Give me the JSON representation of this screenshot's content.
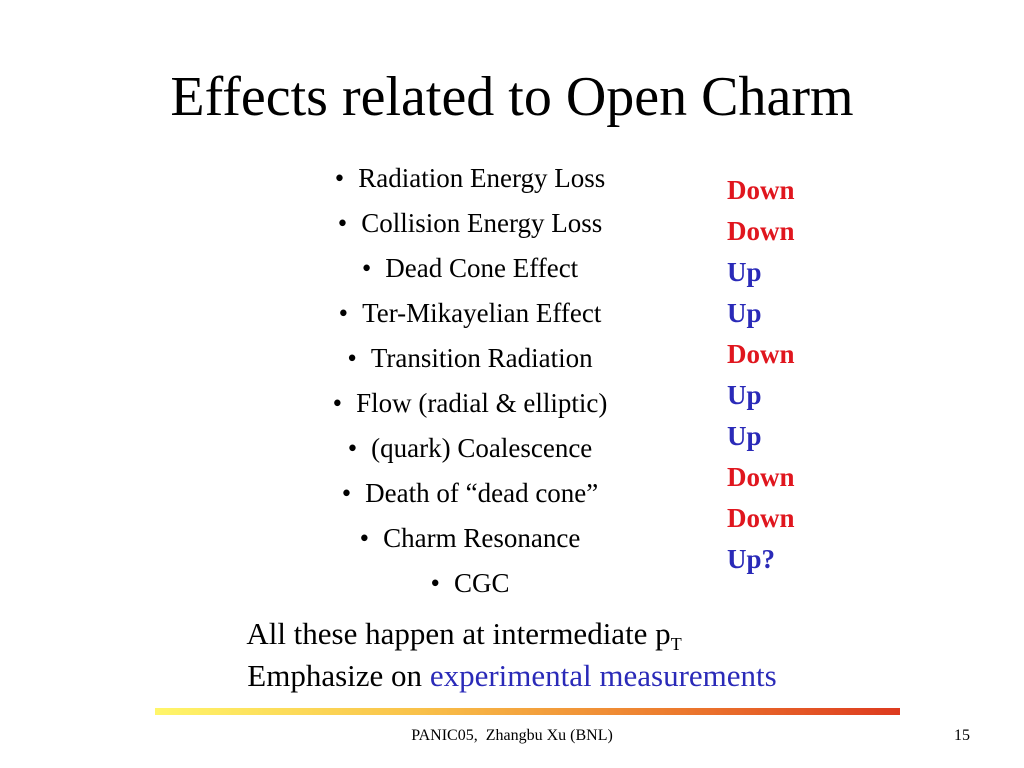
{
  "slide": {
    "title": "Effects related to Open Charm",
    "bullet_marker": "•",
    "bullets": [
      "Radiation Energy Loss",
      "Collision Energy Loss",
      "Dead Cone Effect",
      "Ter-Mikayelian Effect",
      "Transition Radiation",
      "Flow (radial & elliptic)",
      "(quark) Coalescence",
      "Death of “dead cone”",
      "Charm Resonance",
      "CGC"
    ],
    "effects": [
      {
        "text": "Down",
        "color": "#e0161e"
      },
      {
        "text": "Down",
        "color": "#e0161e"
      },
      {
        "text": "Up",
        "color": "#2a2ab8"
      },
      {
        "text": "Up",
        "color": "#2a2ab8"
      },
      {
        "text": "Down",
        "color": "#e0161e"
      },
      {
        "text": "Up",
        "color": "#2a2ab8"
      },
      {
        "text": "Up",
        "color": "#2a2ab8"
      },
      {
        "text": "Down",
        "color": "#e0161e"
      },
      {
        "text": "Down",
        "color": "#e0161e"
      },
      {
        "text": "Up?",
        "color": "#2a2ab8"
      }
    ],
    "summary_line1": {
      "text": "All these happen at intermediate p",
      "subscript": "T"
    },
    "summary_line2": {
      "prefix": "Emphasize on ",
      "highlight": "experimental measurements",
      "highlight_color": "#2a2ab8"
    },
    "footer": "PANIC05,  Zhangbu Xu (BNL)",
    "page_number": "15"
  }
}
